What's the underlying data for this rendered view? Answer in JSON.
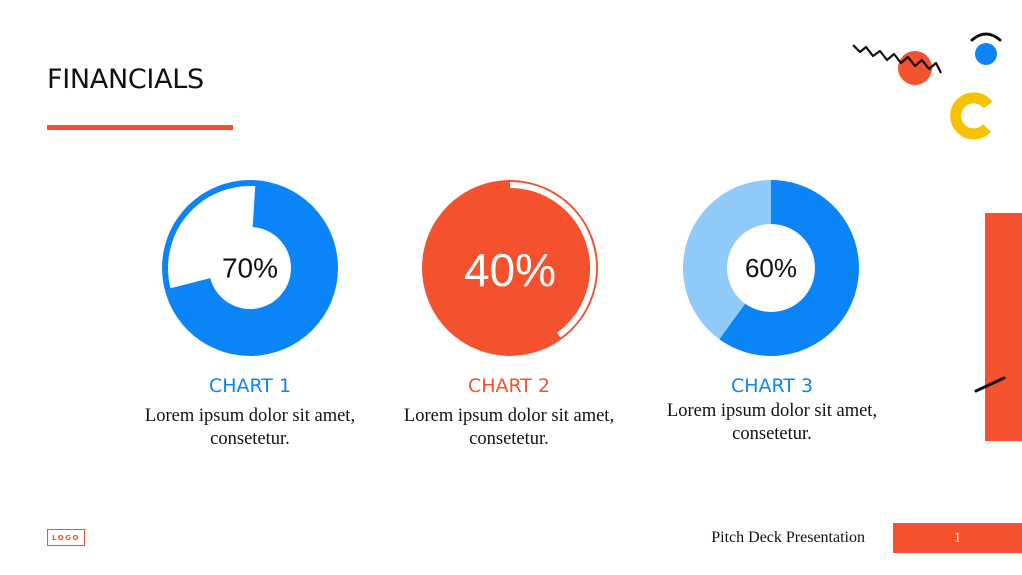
{
  "page": {
    "title": "FINANCIALS",
    "footer": {
      "presentation_name": "Pitch Deck Presentation",
      "page_number": "1",
      "logo_text": "LOGO"
    }
  },
  "colors": {
    "blue": "#0a84f7",
    "light_blue": "#90caf9",
    "orange": "#f4512f",
    "yellow": "#f7c300",
    "black": "#111111",
    "white": "#ffffff"
  },
  "chart_data": [
    {
      "type": "pie",
      "style": "donut",
      "title": "CHART 1",
      "description": "Lorem ipsum dolor sit amet, consetetur.",
      "value_label": "70%",
      "values": [
        70,
        30
      ],
      "title_color": "#0a84f7"
    },
    {
      "type": "pie",
      "style": "progress-ring",
      "title": "CHART 2",
      "description": "Lorem ipsum dolor sit amet, consetetur.",
      "value_label": "40%",
      "values": [
        40,
        60
      ],
      "title_color": "#f4512f"
    },
    {
      "type": "pie",
      "style": "donut",
      "title": "CHART 3",
      "description": "Lorem ipsum dolor sit amet, consetetur.",
      "value_label": "60%",
      "values": [
        60,
        40
      ],
      "title_color": "#0a84f7"
    }
  ]
}
